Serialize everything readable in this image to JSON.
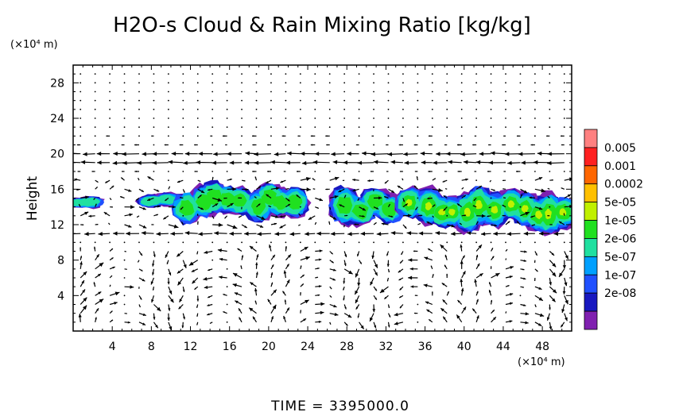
{
  "chart_data": {
    "type": "heatmap",
    "title": "H2O-s Cloud & Rain Mixing Ratio [kg/kg]",
    "ylabel": "Height",
    "y_unit": "(×10⁴ m)",
    "x_unit": "(×10⁴ m)",
    "time_label": "TIME = 3395000.0",
    "xlim": [
      0,
      51
    ],
    "ylim": [
      0,
      30
    ],
    "x_ticks": [
      4,
      8,
      12,
      16,
      20,
      24,
      28,
      32,
      36,
      40,
      44,
      48
    ],
    "y_ticks": [
      4,
      8,
      12,
      16,
      20,
      24,
      28
    ],
    "legend": {
      "labels": [
        "0.005",
        "0.001",
        "0.0002",
        "5e-05",
        "1e-05",
        "2e-06",
        "5e-07",
        "1e-07",
        "2e-08"
      ],
      "colors": [
        "#ff8080",
        "#ff2020",
        "#ff6600",
        "#ffc000",
        "#c0f000",
        "#20e020",
        "#20e0a0",
        "#00a0ff",
        "#2050ff",
        "#1818c0",
        "#8020b0"
      ]
    },
    "cloud_regions": [
      {
        "x": [
          0.0,
          2.5
        ],
        "y": [
          13.7,
          15.3
        ],
        "level": "2e-06"
      },
      {
        "x": [
          7.5,
          10.0
        ],
        "y": [
          13.5,
          15.6
        ],
        "level": "2e-06"
      },
      {
        "x": [
          11.0,
          23.5
        ],
        "y": [
          12.5,
          16.5
        ],
        "level": "5e-06"
      },
      {
        "x": [
          27.0,
          33.0
        ],
        "y": [
          12.0,
          16.5
        ],
        "level": "5e-06"
      },
      {
        "x": [
          34.0,
          51.0
        ],
        "y": [
          11.5,
          16.3
        ],
        "level": "1e-05"
      }
    ],
    "wind_layers": [
      {
        "y": 20,
        "direction": "westward"
      },
      {
        "y": 19,
        "direction": "westward"
      },
      {
        "y": 11,
        "direction": "westward"
      }
    ]
  }
}
